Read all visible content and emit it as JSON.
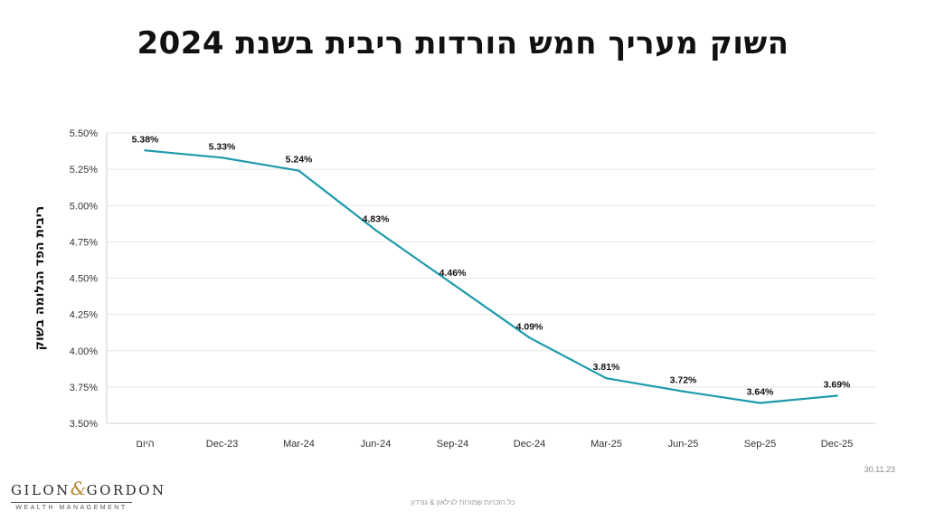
{
  "title": "השוק מעריך חמש הורדות ריבית בשנת  2024",
  "footer": {
    "date": "30.11.23",
    "copyright": "כל הזכויות שמורות לגילאון & גורדון",
    "logo_name_left": "GILON",
    "logo_amp": "&",
    "logo_name_right": "GORDON",
    "logo_subtitle": "WEALTH MANAGEMENT"
  },
  "chart_data": {
    "type": "line",
    "title": "השוק מעריך חמש הורדות ריבית בשנת  2024",
    "ylabel": "ריבית הפד הגלומה בשוק",
    "xlabel": "",
    "categories": [
      "היום",
      "Dec-23",
      "Mar-24",
      "Jun-24",
      "Sep-24",
      "Dec-24",
      "Mar-25",
      "Jun-25",
      "Sep-25",
      "Dec-25"
    ],
    "series": [
      {
        "values": [
          5.38,
          5.33,
          5.24,
          4.83,
          4.46,
          4.09,
          3.81,
          3.72,
          3.64,
          3.69
        ],
        "labels": [
          "5.38%",
          "5.33%",
          "5.24%",
          "4.83%",
          "4.46%",
          "4.09%",
          "3.81%",
          "3.72%",
          "3.64%",
          "3.69%"
        ]
      }
    ],
    "ylim": [
      3.5,
      5.5
    ],
    "yticks": [
      3.5,
      3.75,
      4.0,
      4.25,
      4.5,
      4.75,
      5.0,
      5.25,
      5.5
    ],
    "ytick_labels": [
      "3.50%",
      "3.75%",
      "4.00%",
      "4.25%",
      "4.50%",
      "4.75%",
      "5.00%",
      "5.25%",
      "5.50%"
    ],
    "grid": true,
    "legend": "none",
    "line_color": "#1e9aac",
    "grid_color": "#e6e6e6"
  }
}
